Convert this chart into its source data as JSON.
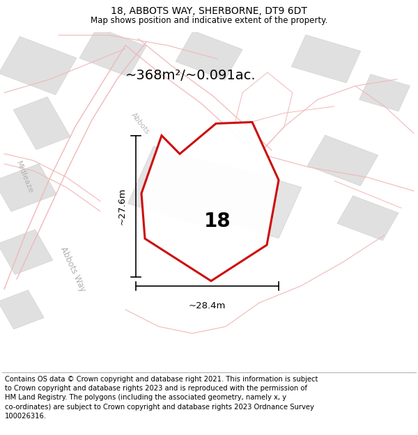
{
  "title": "18, ABBOTS WAY, SHERBORNE, DT9 6DT",
  "subtitle": "Map shows position and indicative extent of the property.",
  "footnote": "Contains OS data © Crown copyright and database right 2021. This information is subject to Crown copyright and database rights 2023 and is reproduced with the permission of HM Land Registry. The polygons (including the associated geometry, namely x, y co-ordinates) are subject to Crown copyright and database rights 2023 Ordnance Survey 100026316.",
  "area_text": "~368m²/~0.091ac.",
  "property_number": "18",
  "dim_vertical": "~27.6m",
  "dim_horizontal": "~28.4m",
  "map_bg": "#f8f8f8",
  "road_color": "#f0b8b8",
  "building_face": "#e0e0e0",
  "building_edge": "#cccccc",
  "property_edge": "#cc0000",
  "title_fontsize": 10,
  "subtitle_fontsize": 8.5,
  "footnote_fontsize": 7.2,
  "area_fontsize": 14,
  "label_fontsize": 9,
  "footnote_text": "Contains OS data © Crown copyright and database right 2021. This information is subject\nto Crown copyright and database rights 2023 and is reproduced with the permission of\nHM Land Registry. The polygons (including the associated geometry, namely x, y\nco-ordinates) are subject to Crown copyright and database rights 2023 Ordnance Survey\n100026316."
}
